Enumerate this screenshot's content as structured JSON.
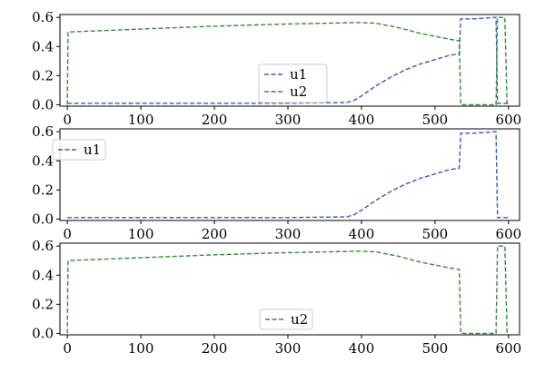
{
  "chart_data": [
    {
      "type": "line",
      "xlim": [
        -10,
        615
      ],
      "ylim": [
        -0.01,
        0.62
      ],
      "xticks": [
        0,
        100,
        200,
        300,
        400,
        500,
        600
      ],
      "yticks": [
        0.0,
        0.2,
        0.4,
        0.6
      ],
      "legend": "lower-center",
      "series": [
        {
          "name": "u1",
          "color": "#3b5bb5",
          "x": [
            0,
            100,
            200,
            300,
            380,
            390,
            400,
            420,
            440,
            460,
            480,
            500,
            520,
            533,
            535,
            555,
            580,
            583,
            585,
            600
          ],
          "y": [
            0.01,
            0.01,
            0.01,
            0.01,
            0.015,
            0.03,
            0.06,
            0.13,
            0.19,
            0.24,
            0.28,
            0.31,
            0.34,
            0.35,
            0.59,
            0.59,
            0.6,
            0.6,
            0.01,
            0.01
          ]
        },
        {
          "name": "u2",
          "color": "#3a8a3a",
          "x": [
            0,
            1,
            100,
            200,
            300,
            400,
            420,
            450,
            480,
            500,
            520,
            533,
            535,
            580,
            583,
            585,
            595,
            598
          ],
          "y": [
            0.0,
            0.5,
            0.52,
            0.54,
            0.555,
            0.565,
            0.56,
            0.53,
            0.49,
            0.47,
            0.45,
            0.44,
            0.0,
            0.0,
            0.0,
            0.6,
            0.6,
            0.0
          ]
        }
      ]
    },
    {
      "type": "line",
      "xlim": [
        -10,
        615
      ],
      "ylim": [
        -0.01,
        0.62
      ],
      "xticks": [
        0,
        100,
        200,
        300,
        400,
        500,
        600
      ],
      "yticks": [
        0.0,
        0.2,
        0.4,
        0.6
      ],
      "legend": "upper-left",
      "series": [
        {
          "name": "u1",
          "color": "#3b5bb5",
          "x": [
            0,
            100,
            200,
            300,
            380,
            390,
            400,
            420,
            440,
            460,
            480,
            500,
            520,
            533,
            535,
            555,
            580,
            583,
            585,
            600
          ],
          "y": [
            0.01,
            0.01,
            0.01,
            0.01,
            0.015,
            0.03,
            0.06,
            0.13,
            0.19,
            0.24,
            0.28,
            0.31,
            0.34,
            0.35,
            0.59,
            0.59,
            0.6,
            0.6,
            0.01,
            0.01
          ]
        }
      ]
    },
    {
      "type": "line",
      "xlim": [
        -10,
        615
      ],
      "ylim": [
        -0.01,
        0.62
      ],
      "xticks": [
        0,
        100,
        200,
        300,
        400,
        500,
        600
      ],
      "yticks": [
        0.0,
        0.2,
        0.4,
        0.6
      ],
      "legend": "lower-center",
      "series": [
        {
          "name": "u2",
          "color": "#3a8a3a",
          "x": [
            0,
            1,
            100,
            200,
            300,
            400,
            420,
            450,
            480,
            500,
            520,
            533,
            535,
            580,
            583,
            585,
            595,
            598
          ],
          "y": [
            0.0,
            0.5,
            0.52,
            0.54,
            0.555,
            0.565,
            0.56,
            0.53,
            0.49,
            0.47,
            0.45,
            0.44,
            0.0,
            0.0,
            0.0,
            0.6,
            0.6,
            0.0
          ]
        }
      ]
    }
  ]
}
